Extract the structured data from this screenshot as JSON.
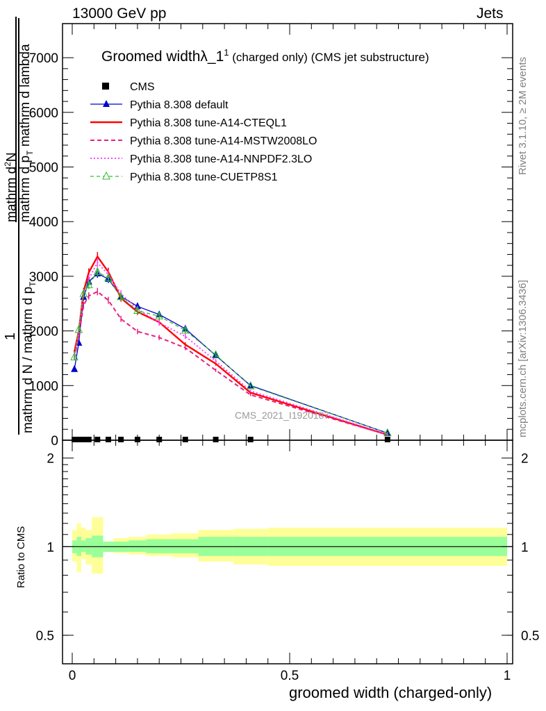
{
  "header": {
    "left": "13000 GeV pp",
    "right": "Jets"
  },
  "side_labels": {
    "rivet": "Rivet 3.1.10, ≥ 2M events",
    "mcplots": "mcplots.cern.ch [arXiv:1306.3436]"
  },
  "watermark": "CMS_2021_I1920187",
  "main_ylabel": {
    "top_line1": "mathrm d",
    "top_line1_sup": "2",
    "top_line1_rest": "N",
    "top_line2": "mathrm d p",
    "top_line2_sub": "T",
    "top_line2_rest": " mathrm d lambda",
    "frac_one": "1",
    "bottom": "mathrm d N / mathrm d p",
    "bottom_sub": "T"
  },
  "ratio_ylabel": "Ratio to CMS",
  "xlabel": "groomed width (charged-only)",
  "main_yticks": [
    "0",
    "1000",
    "2000",
    "3000",
    "4000",
    "5000",
    "6000",
    "7000"
  ],
  "ratio_yticks": [
    "0.5",
    "1",
    "2"
  ],
  "xticks": [
    "0",
    "0.5",
    "1"
  ],
  "chart_data": {
    "type": "line",
    "title": "Groomed widthλ_1",
    "title_sup": "1",
    "title_suffix": " (charged only) (CMS jet substructure)",
    "xlabel": "groomed width (charged-only)",
    "xlim": [
      0,
      1
    ],
    "ylim": [
      0,
      7600
    ],
    "ratio_ylim": [
      0.4,
      2.3
    ],
    "ratio_log": true,
    "grid": false,
    "legend_position": "top-left",
    "bin_edges": [
      0,
      0.0103,
      0.0207,
      0.031,
      0.045,
      0.071,
      0.095,
      0.13,
      0.17,
      0.23,
      0.29,
      0.37,
      0.45,
      1.0
    ],
    "x": [
      0.005,
      0.015,
      0.026,
      0.038,
      0.058,
      0.083,
      0.112,
      0.15,
      0.2,
      0.26,
      0.33,
      0.41,
      0.725
    ],
    "cms_y": [
      0,
      0,
      0,
      0,
      0,
      0,
      0,
      0,
      0,
      0,
      0,
      0,
      0
    ],
    "series": [
      {
        "name": "CMS",
        "color": "#000000",
        "style": "marker-square"
      },
      {
        "name": "Pythia 8.308 default",
        "color": "#0000cc",
        "style": "solid-triangle",
        "values": [
          1300,
          1780,
          2620,
          2900,
          3050,
          2950,
          2630,
          2450,
          2300,
          2040,
          1550,
          1000,
          130
        ]
      },
      {
        "name": "Pythia 8.308 tune-A14-CTEQL1",
        "color": "#ff0000",
        "style": "solid-thick",
        "values": [
          1620,
          2000,
          2720,
          3070,
          3360,
          3080,
          2600,
          2350,
          2160,
          1750,
          1400,
          870,
          100
        ]
      },
      {
        "name": "Pythia 8.308 tune-A14-MSTW2008LO",
        "color": "#e6207e",
        "style": "dashed",
        "values": [
          1500,
          1900,
          2470,
          2640,
          2720,
          2560,
          2220,
          1990,
          1880,
          1690,
          1280,
          830,
          100
        ]
      },
      {
        "name": "Pythia 8.308 tune-A14-NNPDF2.3LO",
        "color": "#ff40ff",
        "style": "dotted",
        "values": [
          1530,
          2000,
          2700,
          2950,
          3250,
          3030,
          2680,
          2400,
          2150,
          1900,
          1450,
          900,
          110
        ]
      },
      {
        "name": "Pythia 8.308 tune-CUETP8S1",
        "color": "#33bb33",
        "style": "dashed-open-triangle",
        "values": [
          1520,
          2020,
          2680,
          2840,
          3080,
          2970,
          2620,
          2370,
          2270,
          2010,
          1560,
          990,
          130
        ]
      }
    ],
    "ratio_band_inner": [
      [
        0.95,
        1.05
      ],
      [
        0.93,
        1.08
      ],
      [
        0.96,
        1.05
      ],
      [
        0.94,
        1.07
      ],
      [
        0.92,
        1.09
      ],
      [
        0.96,
        1.04
      ],
      [
        0.96,
        1.04
      ],
      [
        0.96,
        1.05
      ],
      [
        0.95,
        1.06
      ],
      [
        0.95,
        1.06
      ],
      [
        0.93,
        1.08
      ],
      [
        0.93,
        1.08
      ],
      [
        0.93,
        1.08
      ]
    ],
    "ratio_band_outer": [
      [
        0.89,
        1.14
      ],
      [
        0.82,
        1.2
      ],
      [
        0.91,
        1.16
      ],
      [
        0.87,
        1.14
      ],
      [
        0.81,
        1.26
      ],
      [
        0.96,
        1.04
      ],
      [
        0.95,
        1.07
      ],
      [
        0.94,
        1.08
      ],
      [
        0.93,
        1.1
      ],
      [
        0.92,
        1.11
      ],
      [
        0.89,
        1.14
      ],
      [
        0.87,
        1.15
      ],
      [
        0.86,
        1.16
      ]
    ]
  }
}
